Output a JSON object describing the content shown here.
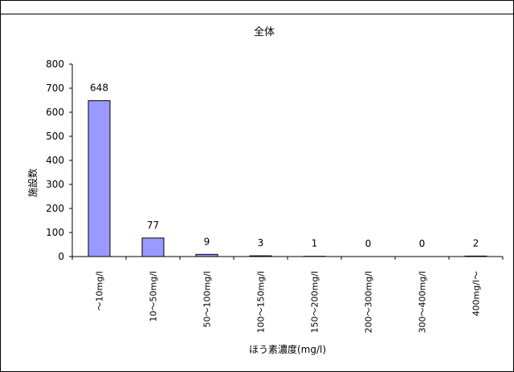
{
  "chart_data": {
    "type": "bar",
    "title": "全体",
    "xlabel": "ほう素濃度(mg/l)",
    "ylabel": "施設数",
    "categories": [
      "～10mg/l",
      "10～50mg/l",
      "50～100mg/l",
      "100～150mg/l",
      "150～200mg/l",
      "200～300mg/l",
      "300～400mg/l",
      "400mg/l～"
    ],
    "values": [
      648,
      77,
      9,
      3,
      1,
      0,
      0,
      2
    ],
    "ylim": [
      0,
      800
    ],
    "yticks": [
      0,
      100,
      200,
      300,
      400,
      500,
      600,
      700,
      800
    ],
    "grid": false,
    "legend": "none",
    "bar_color": "#9999ff",
    "bar_stroke": "#000000"
  }
}
